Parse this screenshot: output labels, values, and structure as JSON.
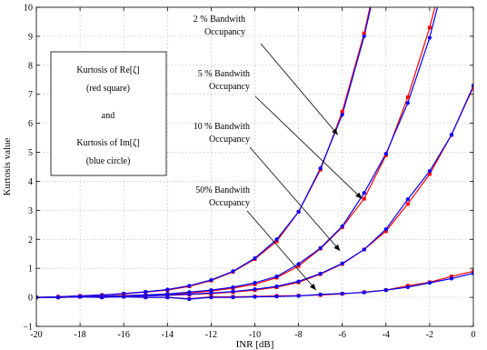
{
  "chart_data": {
    "type": "line",
    "xlabel": "INR [dB]",
    "ylabel": "Kurtosis value",
    "xlim": [
      -20,
      0
    ],
    "ylim": [
      -1,
      10
    ],
    "xticks": [
      -20,
      -18,
      -16,
      -14,
      -12,
      -10,
      -8,
      -6,
      -4,
      -2,
      0
    ],
    "yticks": [
      -1,
      0,
      1,
      2,
      3,
      4,
      5,
      6,
      7,
      8,
      9,
      10
    ],
    "grid": true,
    "legend_box": {
      "lines": [
        "Kurtosis of Re[ζ]",
        "(red square)",
        "and",
        "Kurtosis of Im[ζ]",
        "(blue circle)"
      ]
    },
    "groups": [
      {
        "label": [
          "2 % Bandwith",
          "Occupancy"
        ],
        "x": [
          -20,
          -19,
          -18,
          -17,
          -16,
          -15,
          -14,
          -13,
          -12,
          -11,
          -10,
          -9,
          -8,
          -7,
          -6,
          -5,
          -4
        ],
        "re": [
          0.0,
          0.02,
          0.05,
          0.08,
          0.12,
          0.18,
          0.25,
          0.38,
          0.58,
          0.88,
          1.32,
          1.93,
          2.95,
          4.4,
          6.4,
          9.1,
          12.5
        ],
        "im": [
          0.0,
          0.02,
          0.05,
          0.08,
          0.13,
          0.19,
          0.27,
          0.4,
          0.6,
          0.9,
          1.35,
          2.0,
          2.95,
          4.45,
          6.3,
          9.0,
          12.3
        ]
      },
      {
        "label": [
          "5 % Bandwith",
          "Occupancy"
        ],
        "x": [
          -20,
          -19,
          -18,
          -17,
          -16,
          -15,
          -14,
          -13,
          -12,
          -11,
          -10,
          -9,
          -8,
          -7,
          -6,
          -5,
          -4,
          -3,
          -2,
          -1
        ],
        "re": [
          0.0,
          0.01,
          0.02,
          0.04,
          0.06,
          0.08,
          0.1,
          0.15,
          0.22,
          0.32,
          0.45,
          0.68,
          1.08,
          1.68,
          2.42,
          3.4,
          4.9,
          6.9,
          9.3,
          12.2
        ],
        "im": [
          0.0,
          0.01,
          0.02,
          0.04,
          0.06,
          0.08,
          0.12,
          0.18,
          0.25,
          0.35,
          0.5,
          0.72,
          1.15,
          1.7,
          2.45,
          3.6,
          4.95,
          6.7,
          8.95,
          11.9
        ]
      },
      {
        "label": [
          "10 % Bandwith",
          "Occupancy"
        ],
        "x": [
          -20,
          -19,
          -18,
          -17,
          -16,
          -15,
          -14,
          -13,
          -12,
          -11,
          -10,
          -9,
          -8,
          -7,
          -6,
          -5,
          -4,
          -3,
          -2,
          -1,
          0
        ],
        "re": [
          0.0,
          0.0,
          0.02,
          0.03,
          0.03,
          0.05,
          0.07,
          0.1,
          0.13,
          0.18,
          0.25,
          0.35,
          0.52,
          0.8,
          1.15,
          1.65,
          2.28,
          3.22,
          4.25,
          5.6,
          7.25
        ],
        "im": [
          0.0,
          0.0,
          0.02,
          0.03,
          0.04,
          0.05,
          0.08,
          0.11,
          0.15,
          0.2,
          0.28,
          0.38,
          0.55,
          0.82,
          1.17,
          1.65,
          2.35,
          3.38,
          4.35,
          5.6,
          7.3
        ]
      },
      {
        "label": [
          "50% Bandwith",
          "Occupancy"
        ],
        "x": [
          -20,
          -19,
          -18,
          -17,
          -16,
          -15,
          -14,
          -13,
          -12,
          -11,
          -10,
          -9,
          -8,
          -7,
          -6,
          -5,
          -4,
          -3,
          -2,
          -1,
          0
        ],
        "re": [
          0.0,
          0.0,
          0.02,
          0.0,
          0.03,
          0.0,
          0.0,
          -0.05,
          0.02,
          0.02,
          0.03,
          0.05,
          0.06,
          0.08,
          0.12,
          0.18,
          0.25,
          0.4,
          0.52,
          0.72,
          0.9
        ],
        "im": [
          0.0,
          0.0,
          0.02,
          0.0,
          0.02,
          0.0,
          0.0,
          -0.06,
          0.0,
          0.0,
          0.02,
          0.03,
          0.05,
          0.1,
          0.13,
          0.17,
          0.25,
          0.35,
          0.5,
          0.65,
          0.83
        ]
      }
    ],
    "colors": {
      "re": "#ff0000",
      "im": "#0000ff"
    }
  }
}
